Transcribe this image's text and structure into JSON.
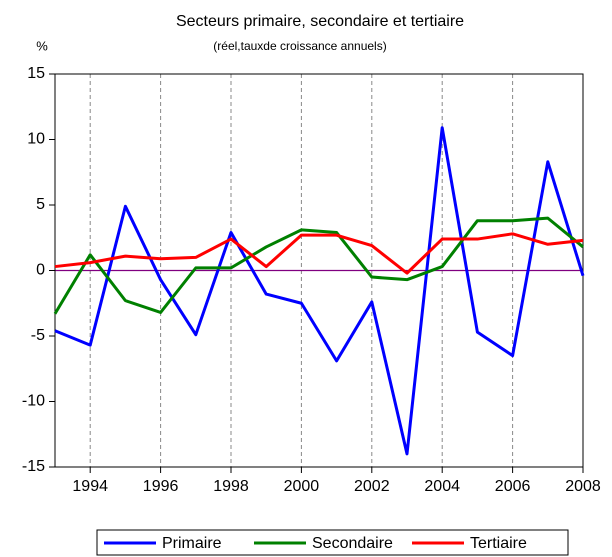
{
  "chart_data": {
    "type": "line",
    "title": "Secteurs primaire, secondaire et tertiaire",
    "subtitle": "(réel,tauxde croissance annuels)",
    "ylabel": "%",
    "x": [
      1993,
      1994,
      1995,
      1996,
      1997,
      1998,
      1999,
      2000,
      2001,
      2002,
      2003,
      2004,
      2005,
      2006,
      2007,
      2008
    ],
    "xlim": [
      1993,
      2008
    ],
    "xticks": [
      1994,
      1996,
      1998,
      2000,
      2002,
      2004,
      2006,
      2008
    ],
    "ylim": [
      -15,
      15
    ],
    "yticks": [
      15,
      10,
      5,
      0,
      -5,
      -10,
      -15
    ],
    "grid": true,
    "legend": "bottom",
    "zero_line_color": "#800080",
    "series": [
      {
        "name": "Primaire",
        "color": "#0000ff",
        "values": [
          -4.6,
          -5.7,
          4.9,
          -0.7,
          -4.9,
          2.9,
          -1.8,
          -2.5,
          -6.9,
          -2.4,
          -14.0,
          10.9,
          -4.7,
          -6.5,
          8.3,
          -0.4
        ]
      },
      {
        "name": "Secondaire",
        "color": "#008000",
        "values": [
          -3.3,
          1.2,
          -2.3,
          -3.2,
          0.2,
          0.2,
          1.8,
          3.1,
          2.9,
          -0.5,
          -0.7,
          0.3,
          3.8,
          3.8,
          4.0,
          1.8
        ]
      },
      {
        "name": "Tertiaire",
        "color": "#ff0000",
        "values": [
          0.3,
          0.6,
          1.1,
          0.9,
          1.0,
          2.4,
          0.3,
          2.7,
          2.7,
          1.9,
          -0.2,
          2.4,
          2.4,
          2.8,
          2.0,
          2.3
        ]
      }
    ]
  }
}
